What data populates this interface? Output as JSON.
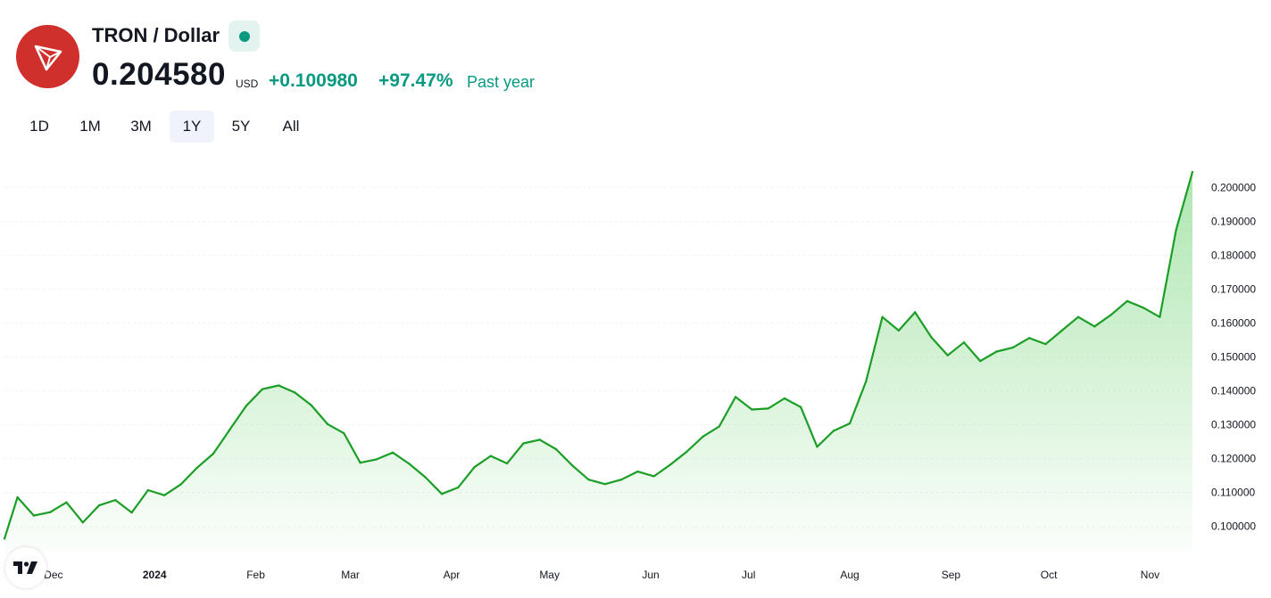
{
  "header": {
    "title": "TRON / Dollar",
    "logo_icon": "tron-logo-icon",
    "logo_color": "#cf302b",
    "status": "market-open-dot",
    "price": "0.204580",
    "currency": "USD",
    "change_abs": "+0.100980",
    "change_pct": "+97.47%",
    "period_label": "Past year",
    "accent_color": "#089981"
  },
  "tabs": [
    {
      "label": "1D",
      "active": false
    },
    {
      "label": "1M",
      "active": false
    },
    {
      "label": "3M",
      "active": false
    },
    {
      "label": "1Y",
      "active": true
    },
    {
      "label": "5Y",
      "active": false
    },
    {
      "label": "All",
      "active": false
    }
  ],
  "chart_data": {
    "type": "area",
    "line_color": "#1a9e26",
    "fill_color": "#4cc850",
    "ylim": [
      0.0923,
      0.2101
    ],
    "y_ticks": [
      "0.100000",
      "0.110000",
      "0.120000",
      "0.130000",
      "0.140000",
      "0.150000",
      "0.160000",
      "0.170000",
      "0.180000",
      "0.190000",
      "0.200000"
    ],
    "x_ticks": [
      "Dec",
      "2024",
      "Feb",
      "Mar",
      "Apr",
      "May",
      "Jun",
      "Jul",
      "Aug",
      "Sep",
      "Oct",
      "Nov"
    ],
    "x": [
      "2023-11-16",
      "2023-11-20",
      "2023-11-25",
      "2023-11-30",
      "2023-12-05",
      "2023-12-10",
      "2023-12-15",
      "2023-12-20",
      "2023-12-25",
      "2023-12-30",
      "2024-01-04",
      "2024-01-09",
      "2024-01-14",
      "2024-01-19",
      "2024-01-24",
      "2024-01-29",
      "2024-02-03",
      "2024-02-08",
      "2024-02-13",
      "2024-02-18",
      "2024-02-23",
      "2024-02-28",
      "2024-03-04",
      "2024-03-09",
      "2024-03-14",
      "2024-03-19",
      "2024-03-24",
      "2024-03-29",
      "2024-04-03",
      "2024-04-08",
      "2024-04-13",
      "2024-04-18",
      "2024-04-23",
      "2024-04-28",
      "2024-05-03",
      "2024-05-08",
      "2024-05-13",
      "2024-05-18",
      "2024-05-23",
      "2024-05-28",
      "2024-06-02",
      "2024-06-07",
      "2024-06-12",
      "2024-06-17",
      "2024-06-22",
      "2024-06-27",
      "2024-07-02",
      "2024-07-07",
      "2024-07-12",
      "2024-07-17",
      "2024-07-22",
      "2024-07-27",
      "2024-08-01",
      "2024-08-06",
      "2024-08-11",
      "2024-08-16",
      "2024-08-21",
      "2024-08-26",
      "2024-08-31",
      "2024-09-05",
      "2024-09-10",
      "2024-09-15",
      "2024-09-20",
      "2024-09-25",
      "2024-09-30",
      "2024-10-05",
      "2024-10-10",
      "2024-10-15",
      "2024-10-20",
      "2024-10-25",
      "2024-10-30",
      "2024-11-04",
      "2024-11-09",
      "2024-11-14"
    ],
    "values": [
      0.0964,
      0.1086,
      0.1032,
      0.1042,
      0.1071,
      0.1012,
      0.1062,
      0.1078,
      0.1041,
      0.1107,
      0.1092,
      0.1124,
      0.1173,
      0.1215,
      0.1285,
      0.1355,
      0.1405,
      0.1416,
      0.1395,
      0.1358,
      0.1302,
      0.1275,
      0.1188,
      0.1198,
      0.1218,
      0.1185,
      0.1145,
      0.1096,
      0.1115,
      0.1175,
      0.1208,
      0.1186,
      0.1245,
      0.1256,
      0.1228,
      0.118,
      0.1138,
      0.1125,
      0.1138,
      0.1162,
      0.1148,
      0.1182,
      0.122,
      0.1265,
      0.1295,
      0.1382,
      0.1345,
      0.1348,
      0.1378,
      0.1352,
      0.1235,
      0.1282,
      0.1304,
      0.1428,
      0.1618,
      0.1578,
      0.1632,
      0.1558,
      0.1505,
      0.1543,
      0.1488,
      0.1516,
      0.1528,
      0.1556,
      0.1538,
      0.1578,
      0.1618,
      0.159,
      0.1624,
      0.1665,
      0.1645,
      0.1618,
      0.1875,
      0.2046
    ]
  }
}
